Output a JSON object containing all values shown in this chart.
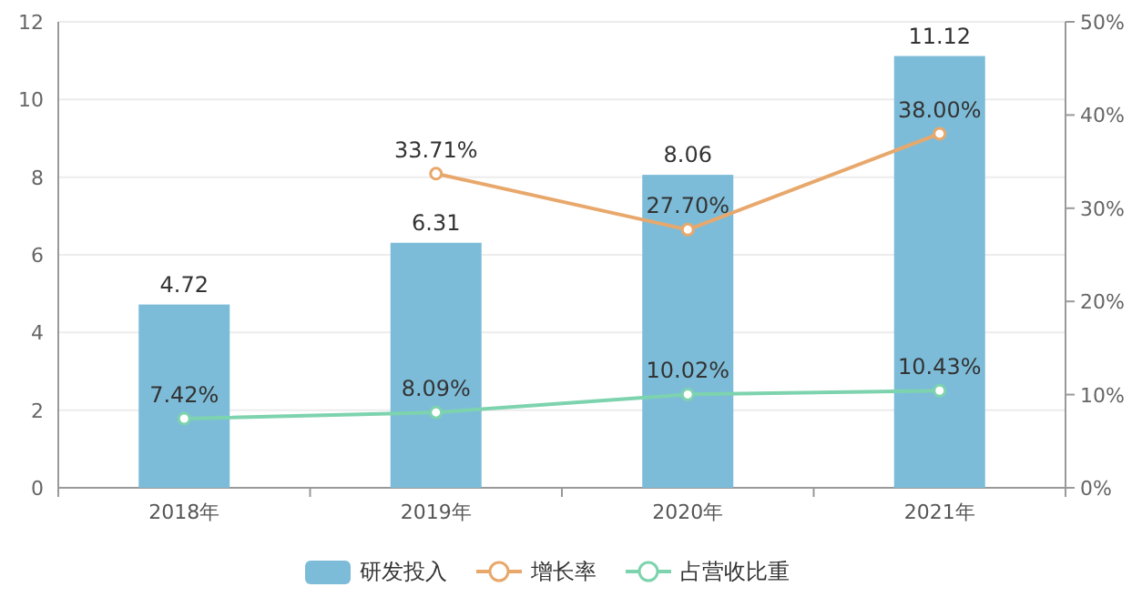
{
  "chart_data": {
    "type": "bar",
    "categories": [
      "2018年",
      "2019年",
      "2020年",
      "2021年"
    ],
    "series": [
      {
        "name": "研发投入",
        "color": "#7dbcd9",
        "values": [
          4.72,
          6.31,
          8.06,
          11.12
        ]
      },
      {
        "name": "增长率",
        "type": "line",
        "axis": "y2",
        "color": "#e8a86c",
        "values": [
          null,
          33.71,
          27.7,
          38.0
        ],
        "value_labels": [
          null,
          "33.71%",
          "27.70%",
          "38.00%"
        ]
      },
      {
        "name": "占营收比重",
        "type": "line",
        "axis": "y2",
        "color": "#7dd3ae",
        "values": [
          7.42,
          8.09,
          10.02,
          10.43
        ],
        "value_labels": [
          "7.42%",
          "8.09%",
          "10.02%",
          "10.43%"
        ]
      }
    ],
    "ylim": [
      0,
      12
    ],
    "yticks": [
      0,
      2,
      4,
      6,
      8,
      10,
      12
    ],
    "y2lim": [
      0,
      50
    ],
    "y2ticks": [
      {
        "value": 0,
        "label": "0%"
      },
      {
        "value": 10,
        "label": "10%"
      },
      {
        "value": 20,
        "label": "20%"
      },
      {
        "value": 30,
        "label": "30%"
      },
      {
        "value": 40,
        "label": "40%"
      },
      {
        "value": 50,
        "label": "50%"
      }
    ],
    "data_labels": true,
    "grid": "y",
    "legend": "bottom",
    "marker": "circle",
    "line_style": "solid"
  }
}
